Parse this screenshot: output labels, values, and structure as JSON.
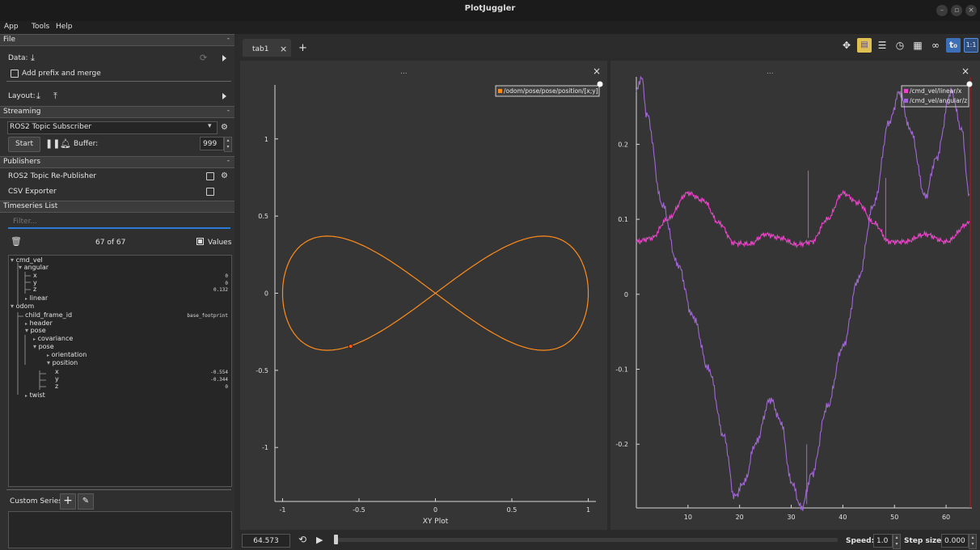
{
  "window": {
    "title": "PlotJuggler"
  },
  "menubar": {
    "items": [
      "App",
      "Tools",
      "Help"
    ]
  },
  "file": {
    "header": "File",
    "data_label": "Data:",
    "add_prefix": "Add prefix and merge",
    "layout_label": "Layout:"
  },
  "streaming": {
    "header": "Streaming",
    "source": "ROS2 Topic Subscriber",
    "start": "Start",
    "buffer_label": "Buffer:",
    "buffer_value": "999"
  },
  "publishers": {
    "header": "Publishers",
    "items": [
      "ROS2 Topic Re-Publisher",
      "CSV Exporter"
    ]
  },
  "timeseries": {
    "header": "Timeseries List",
    "filter_placeholder": "Filter...",
    "count": "67 of 67",
    "values_label": "Values",
    "tree": [
      {
        "label": "cmd_vel",
        "value": ""
      },
      {
        "label": "angular",
        "value": ""
      },
      {
        "label": "x",
        "value": "0"
      },
      {
        "label": "y",
        "value": "0"
      },
      {
        "label": "z",
        "value": "0.132"
      },
      {
        "label": "linear",
        "value": ""
      },
      {
        "label": "odom",
        "value": ""
      },
      {
        "label": "child_frame_id",
        "value": "base_footprint"
      },
      {
        "label": "header",
        "value": ""
      },
      {
        "label": "pose",
        "value": ""
      },
      {
        "label": "covariance",
        "value": ""
      },
      {
        "label": "pose",
        "value": ""
      },
      {
        "label": "orientation",
        "value": ""
      },
      {
        "label": "position",
        "value": ""
      },
      {
        "label": "x",
        "value": "-0.554"
      },
      {
        "label": "y",
        "value": "-0.344"
      },
      {
        "label": "z",
        "value": "0"
      },
      {
        "label": "twist",
        "value": ""
      }
    ]
  },
  "custom_series": {
    "label": "Custom Series:"
  },
  "tabs": {
    "active": "tab1",
    "close": "×",
    "add": "+"
  },
  "plot_common": {
    "drag_handle": "...",
    "close": "×"
  },
  "bottom": {
    "time": "64.573",
    "speed_label": "Speed:",
    "speed_value": "1.0",
    "step_label": "Step size:",
    "step_value": "0.000"
  },
  "colors": {
    "orange": "#ff8c1a",
    "magenta": "#ee44cc",
    "purple": "#a267d6"
  },
  "chart_data": [
    {
      "type": "scatter",
      "title": "",
      "xlabel": "XY Plot",
      "ylabel": "",
      "xlim": [
        -1.05,
        1.05
      ],
      "ylim": [
        -1.35,
        1.35
      ],
      "x_ticks": [
        "-1",
        "-0.5",
        "0",
        "0.5",
        "1"
      ],
      "y_ticks": [
        "-1",
        "-0.5",
        "0",
        "0.5",
        "1"
      ],
      "legend": "top-right",
      "series": [
        {
          "name": "/odom/pose/pose/position/[x;y]",
          "color": "#ff8c1a",
          "shape": "figure-eight",
          "x_amplitude": 1.0,
          "y_amplitude": 0.37
        }
      ],
      "marker": {
        "x": -0.554,
        "y": -0.344
      }
    },
    {
      "type": "line",
      "title": "",
      "xlabel": "",
      "ylabel": "",
      "xlim": [
        0,
        65
      ],
      "ylim": [
        -0.285,
        0.29
      ],
      "x_ticks": [
        "10",
        "20",
        "30",
        "40",
        "50",
        "60"
      ],
      "y_ticks": [
        "-0.2",
        "-0.1",
        "0",
        "0.1",
        "0.2"
      ],
      "legend": "top-right",
      "series": [
        {
          "name": "/cmd_vel/linear/x",
          "color": "#ee44cc",
          "x": [
            0,
            3,
            6,
            10,
            13,
            16,
            19,
            22,
            25,
            28,
            31,
            34,
            37,
            40,
            43,
            46,
            49,
            52,
            56,
            60,
            64.5
          ],
          "values": [
            0.07,
            0.075,
            0.1,
            0.135,
            0.125,
            0.095,
            0.068,
            0.067,
            0.08,
            0.075,
            0.066,
            0.07,
            0.1,
            0.135,
            0.122,
            0.095,
            0.07,
            0.07,
            0.08,
            0.07,
            0.095
          ]
        },
        {
          "name": "/cmd_vel/angular/z",
          "color": "#a267d6",
          "x": [
            0,
            1,
            2,
            5,
            8,
            11,
            14,
            17,
            19,
            21,
            23,
            26,
            28,
            30,
            32,
            34,
            37,
            40,
            43,
            46,
            49,
            51,
            53,
            56,
            58,
            61,
            63,
            64.5
          ],
          "values": [
            0.27,
            0.29,
            0.24,
            0.12,
            0.04,
            -0.03,
            -0.1,
            -0.19,
            -0.27,
            -0.25,
            -0.2,
            -0.14,
            -0.17,
            -0.25,
            -0.285,
            -0.24,
            -0.15,
            -0.07,
            0.02,
            0.12,
            0.23,
            0.27,
            0.22,
            0.13,
            0.18,
            0.27,
            0.22,
            0.13
          ]
        }
      ]
    }
  ]
}
